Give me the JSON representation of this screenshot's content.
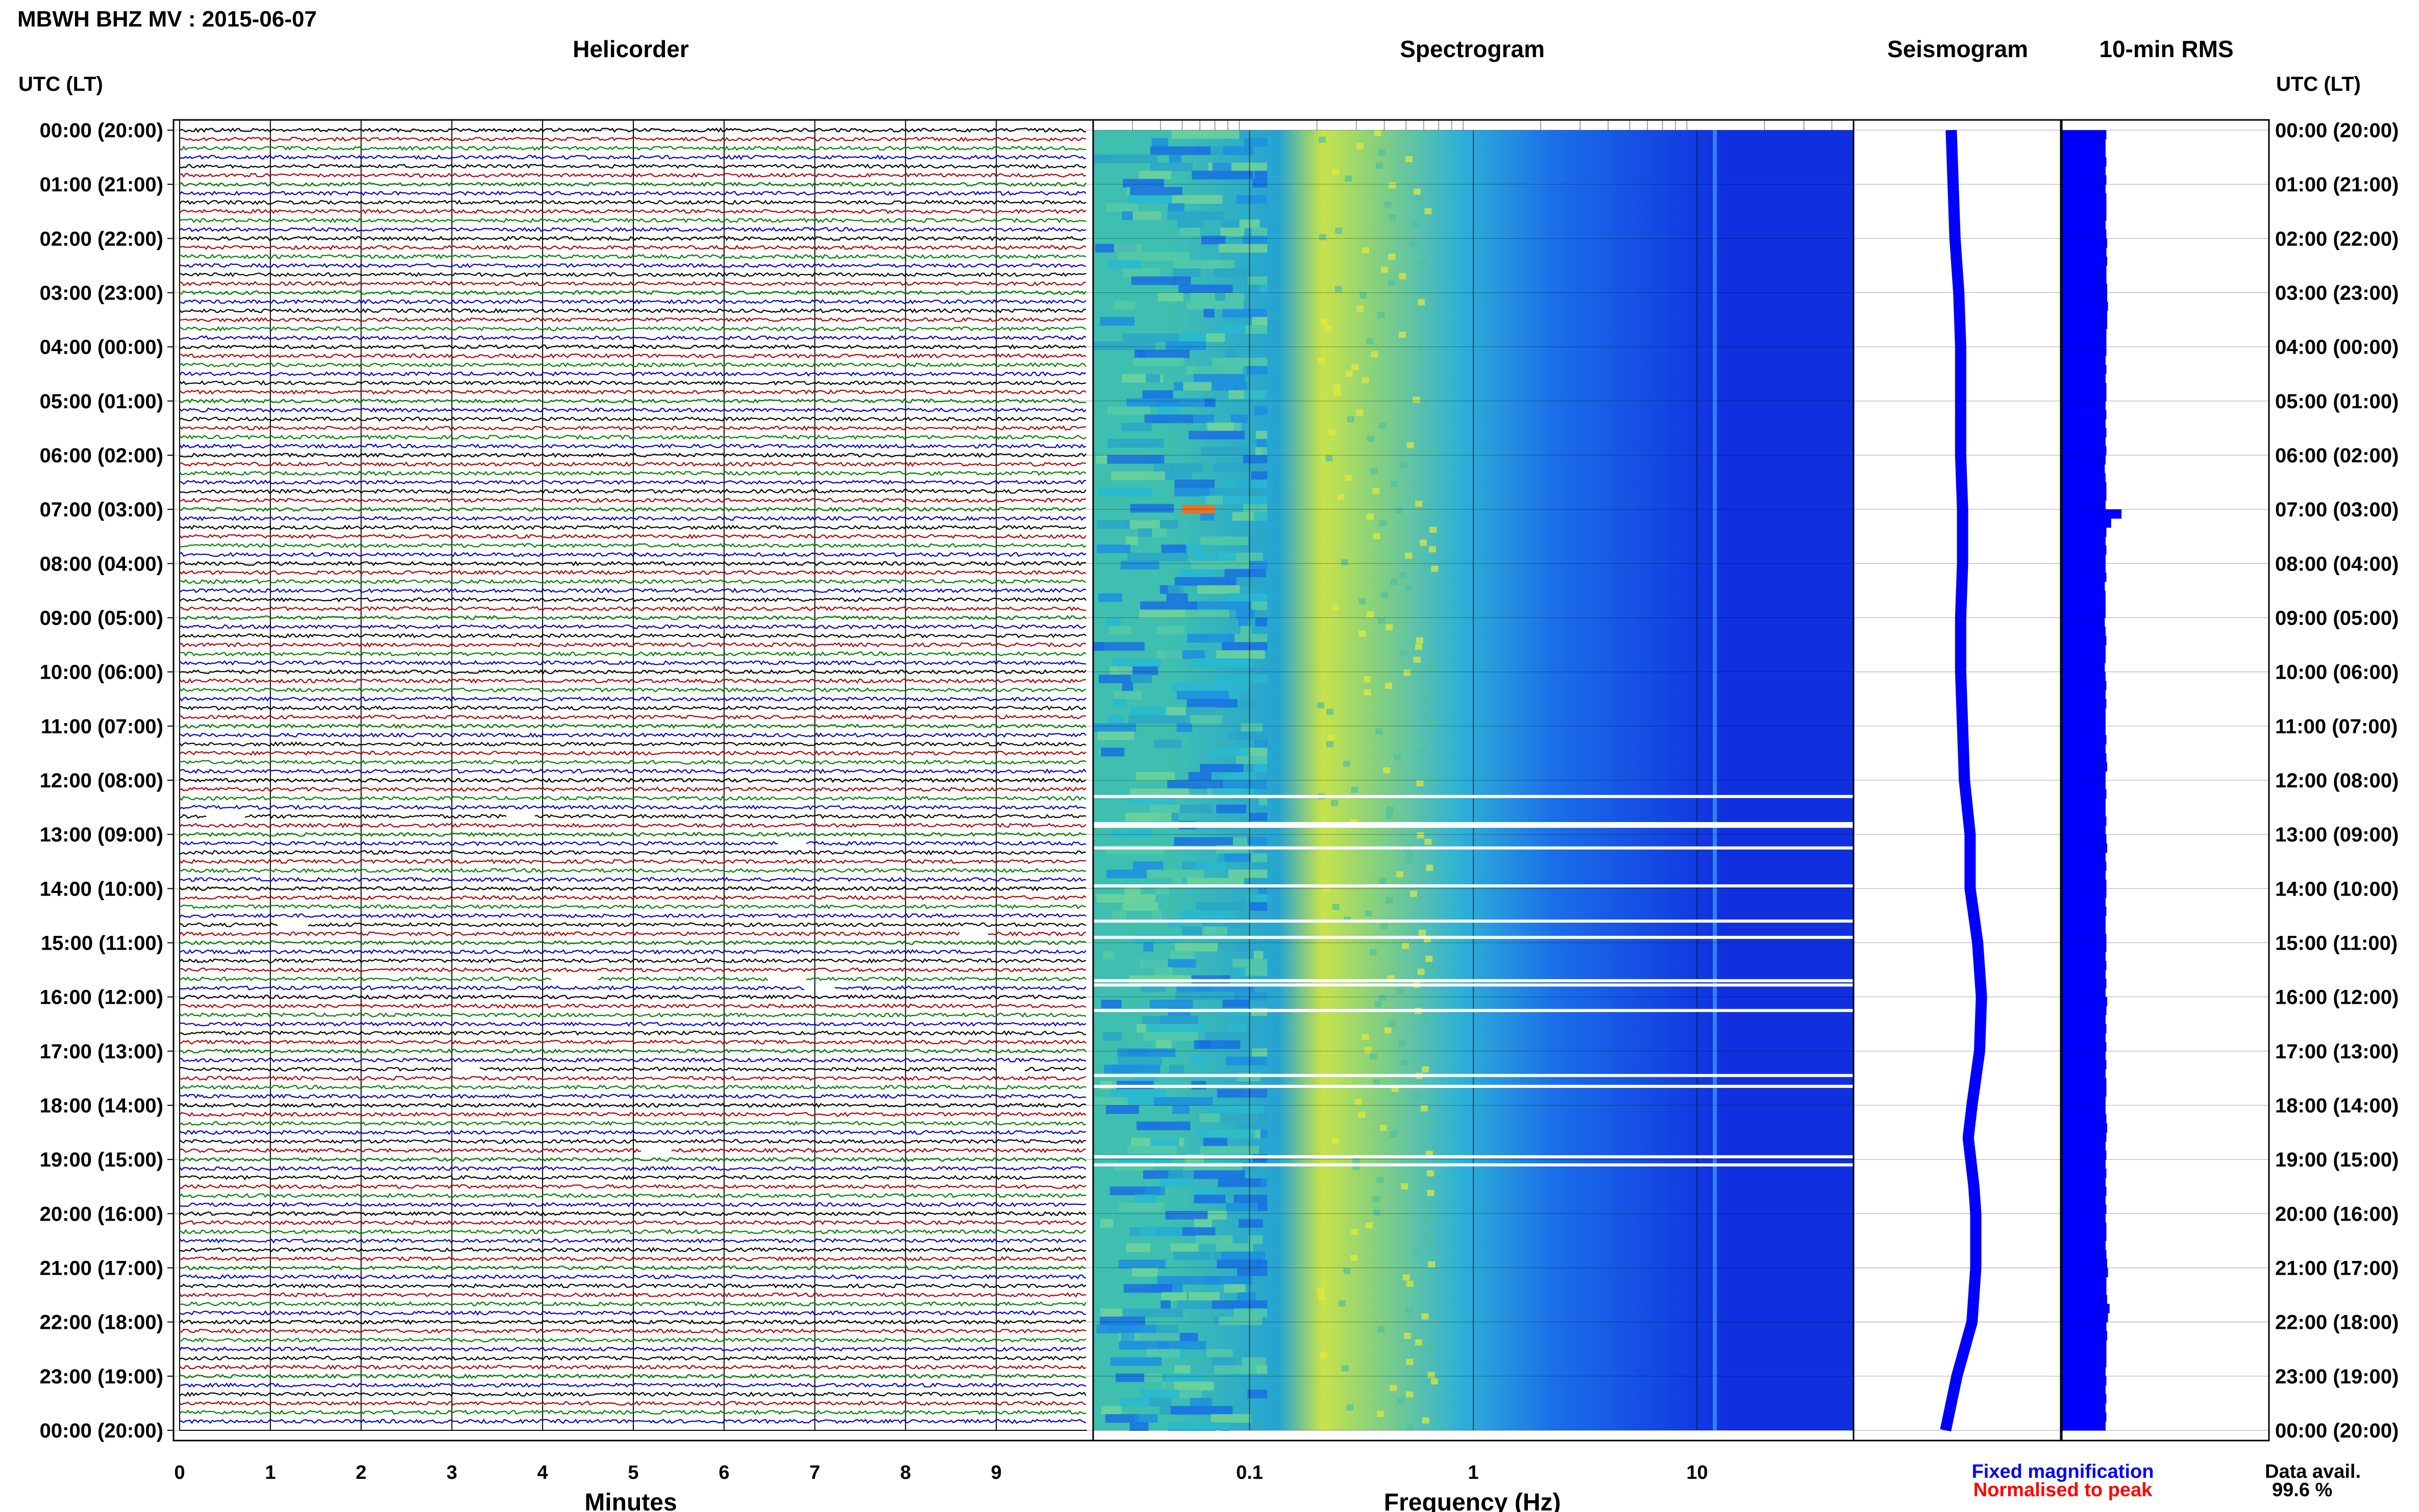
{
  "header": {
    "title": "MBWH BHZ MV : 2015-06-07"
  },
  "panels": {
    "helicorder": "Helicorder",
    "spectrogram": "Spectrogram",
    "seismogram": "Seismogram",
    "rms": "10-min RMS"
  },
  "axis": {
    "utc_label_left": "UTC (LT)",
    "utc_label_right": "UTC (LT)",
    "minutes_label": "Minutes",
    "frequency_label": "Frequency (Hz)"
  },
  "legend": {
    "fixed": "Fixed magnification",
    "normalised": "Normalised to peak",
    "data_avail_label": "Data avail.",
    "data_avail_value": "99.6 %",
    "fixed_color": "#0000ff",
    "normalised_color": "#ff0000"
  },
  "chart_data": [
    {
      "type": "line",
      "name": "helicorder",
      "title": "Helicorder",
      "xlabel": "Minutes",
      "x_ticks": [
        "0",
        "1",
        "2",
        "3",
        "4",
        "5",
        "6",
        "7",
        "8",
        "9"
      ],
      "xlim": [
        0,
        10
      ],
      "y_ticks": [
        "00:00 (20:00)",
        "01:00 (21:00)",
        "02:00 (22:00)",
        "03:00 (23:00)",
        "04:00 (00:00)",
        "05:00 (01:00)",
        "06:00 (02:00)",
        "07:00 (03:00)",
        "08:00 (04:00)",
        "09:00 (05:00)",
        "10:00 (06:00)",
        "11:00 (07:00)",
        "12:00 (08:00)",
        "13:00 (09:00)",
        "14:00 (10:00)",
        "15:00 (11:00)",
        "16:00 (12:00)",
        "17:00 (13:00)",
        "18:00 (14:00)",
        "19:00 (15:00)",
        "20:00 (16:00)",
        "21:00 (17:00)",
        "22:00 (18:00)",
        "23:00 (19:00)",
        "00:00 (20:00)"
      ],
      "traces_per_hour": 6,
      "trace_colors": [
        "#000000",
        "#b00000",
        "#008000",
        "#0000cc"
      ],
      "data_gaps": [
        {
          "hour": 12.7,
          "start_min": 0.3,
          "end_min": 0.7
        },
        {
          "hour": 12.7,
          "start_min": 3.6,
          "end_min": 3.9
        },
        {
          "hour": 13.2,
          "start_min": 6.6,
          "end_min": 6.9
        },
        {
          "hour": 14.7,
          "start_min": 1.1,
          "end_min": 1.4
        },
        {
          "hour": 14.8,
          "start_min": 8.6,
          "end_min": 8.9
        },
        {
          "hour": 15.6,
          "start_min": 4.1,
          "end_min": 4.6
        },
        {
          "hour": 15.6,
          "start_min": 6.5,
          "end_min": 6.9
        },
        {
          "hour": 15.9,
          "start_min": 6.9,
          "end_min": 7.2
        },
        {
          "hour": 17.3,
          "start_min": 3.0,
          "end_min": 3.3
        },
        {
          "hour": 17.4,
          "start_min": 9.0,
          "end_min": 9.3
        },
        {
          "hour": 18.8,
          "start_min": 5.1,
          "end_min": 5.4
        }
      ]
    },
    {
      "type": "heatmap",
      "name": "spectrogram",
      "title": "Spectrogram",
      "xlabel": "Frequency (Hz)",
      "x_scale": "log",
      "x_ticks": [
        "0.1",
        "1",
        "10"
      ],
      "xlim": [
        0.02,
        50
      ],
      "bands": [
        {
          "f0": 0.02,
          "f1": 0.1,
          "color": "#3fbfb0"
        },
        {
          "f0": 0.1,
          "f1": 0.18,
          "color": "#25a4d2"
        },
        {
          "f0": 0.18,
          "f1": 0.25,
          "color": "#c8e34a"
        },
        {
          "f0": 0.25,
          "f1": 0.5,
          "color": "#8ad27a"
        },
        {
          "f0": 0.5,
          "f1": 1.5,
          "color": "#2eb2d6"
        },
        {
          "f0": 1.5,
          "f1": 3.5,
          "color": "#1a6fe8"
        },
        {
          "f0": 3.5,
          "f1": 50,
          "color": "#1030e0"
        }
      ],
      "line_hz": 12,
      "hot_spot": {
        "hour": 7.0,
        "f0": 0.05,
        "f1": 0.07
      },
      "gap_hours": [
        12.3,
        12.8,
        12.85,
        13.25,
        13.95,
        14.6,
        14.9,
        15.7,
        15.78,
        16.25,
        17.45,
        17.65,
        18.95,
        19.1
      ]
    },
    {
      "type": "line",
      "name": "seismogram",
      "title": "Seismogram",
      "points": [
        {
          "h": 0,
          "x": 0.42
        },
        {
          "h": 1,
          "x": 0.43
        },
        {
          "h": 2,
          "x": 0.44
        },
        {
          "h": 3,
          "x": 0.46
        },
        {
          "h": 4,
          "x": 0.47
        },
        {
          "h": 5,
          "x": 0.47
        },
        {
          "h": 6,
          "x": 0.47
        },
        {
          "h": 7,
          "x": 0.48
        },
        {
          "h": 8,
          "x": 0.48
        },
        {
          "h": 9,
          "x": 0.47
        },
        {
          "h": 10,
          "x": 0.47
        },
        {
          "h": 11,
          "x": 0.48
        },
        {
          "h": 12,
          "x": 0.49
        },
        {
          "h": 13,
          "x": 0.52
        },
        {
          "h": 14,
          "x": 0.52
        },
        {
          "h": 15,
          "x": 0.56
        },
        {
          "h": 16,
          "x": 0.58
        },
        {
          "h": 17,
          "x": 0.57
        },
        {
          "h": 18,
          "x": 0.53
        },
        {
          "h": 18.6,
          "x": 0.51
        },
        {
          "h": 19.5,
          "x": 0.54
        },
        {
          "h": 20,
          "x": 0.55
        },
        {
          "h": 21,
          "x": 0.55
        },
        {
          "h": 22,
          "x": 0.53
        },
        {
          "h": 23,
          "x": 0.45
        },
        {
          "h": 24,
          "x": 0.39
        }
      ]
    },
    {
      "type": "bar",
      "name": "10-min-rms",
      "title": "10-min RMS",
      "values": [
        0.56,
        0.55,
        0.55,
        0.56,
        0.55,
        0.56,
        0.55,
        0.56,
        0.56,
        0.56,
        0.55,
        0.56,
        0.57,
        0.56,
        0.57,
        0.56,
        0.56,
        0.57,
        0.57,
        0.58,
        0.57,
        0.57,
        0.56,
        0.56,
        0.56,
        0.55,
        0.56,
        0.55,
        0.56,
        0.56,
        0.55,
        0.56,
        0.55,
        0.56,
        0.55,
        0.56,
        0.55,
        0.54,
        0.55,
        0.56,
        0.56,
        0.55,
        0.75,
        0.62,
        0.56,
        0.55,
        0.56,
        0.55,
        0.55,
        0.56,
        0.54,
        0.55,
        0.55,
        0.55,
        0.54,
        0.55,
        0.56,
        0.55,
        0.55,
        0.54,
        0.55,
        0.56,
        0.55,
        0.56,
        0.55,
        0.55,
        0.55,
        0.56,
        0.55,
        0.56,
        0.57,
        0.55,
        0.55,
        0.56,
        0.55,
        0.55,
        0.56,
        0.55,
        0.56,
        0.57,
        0.55,
        0.56,
        0.55,
        0.56,
        0.56,
        0.55,
        0.56,
        0.55,
        0.55,
        0.56,
        0.56,
        0.55,
        0.56,
        0.55,
        0.56,
        0.55,
        0.57,
        0.56,
        0.55,
        0.56,
        0.55,
        0.56,
        0.55,
        0.56,
        0.55,
        0.56,
        0.56,
        0.55,
        0.55,
        0.56,
        0.57,
        0.56,
        0.55,
        0.56,
        0.55,
        0.56,
        0.55,
        0.56,
        0.55,
        0.56,
        0.55,
        0.56,
        0.56,
        0.55,
        0.56,
        0.57,
        0.58,
        0.56,
        0.56,
        0.57,
        0.6,
        0.58,
        0.56,
        0.57,
        0.56,
        0.56,
        0.56,
        0.55,
        0.56,
        0.55,
        0.56,
        0.55,
        0.56,
        0.55
      ]
    }
  ],
  "colors": {
    "bar": "#0000ff",
    "seismogram": "#0000ff",
    "grid": "#000000"
  }
}
